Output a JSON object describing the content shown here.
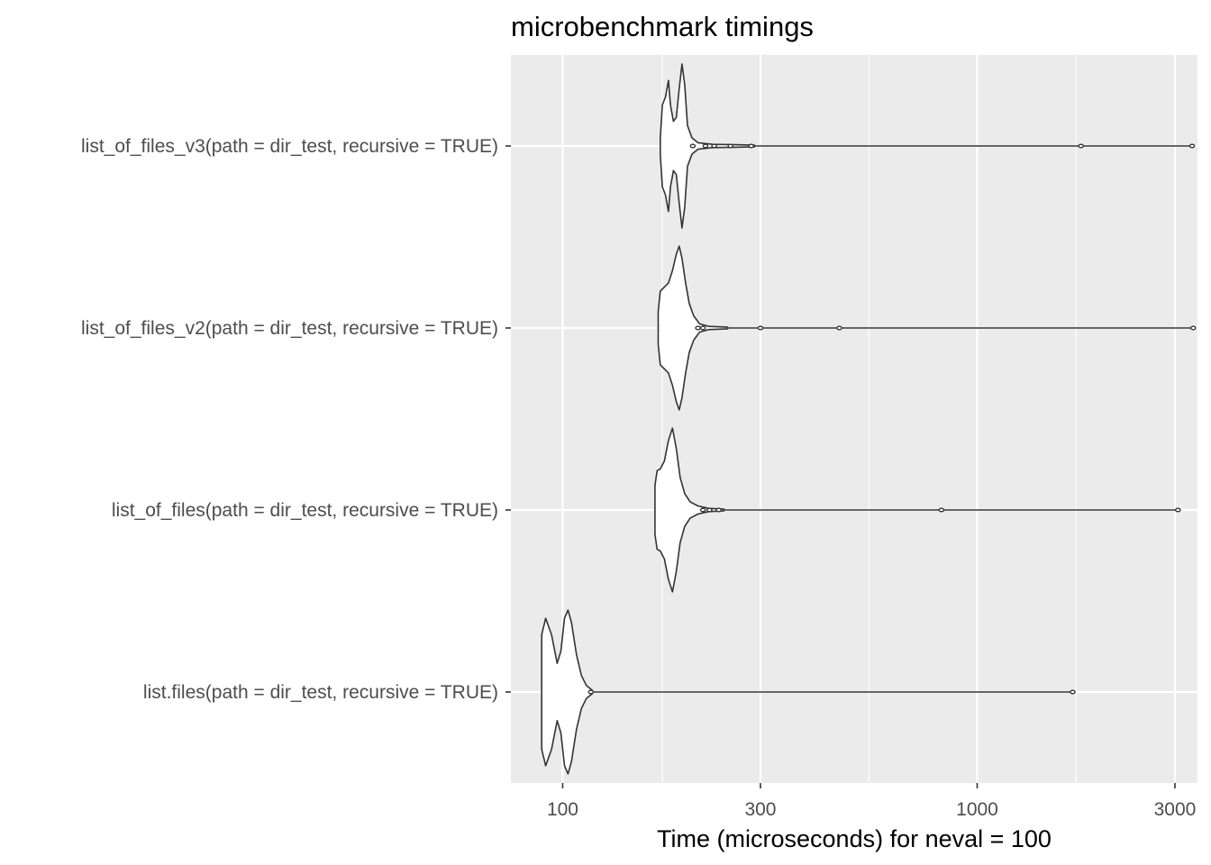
{
  "chart_data": {
    "type": "violin",
    "title": "microbenchmark timings",
    "xlabel": "Time (microseconds) for neval = 100",
    "ylabel": "",
    "x_scale": "log10",
    "xlim": [
      75,
      3400
    ],
    "x_ticks": [
      100,
      300,
      1000,
      3000
    ],
    "x_tick_labels": [
      "100",
      "300",
      "1000",
      "3000"
    ],
    "x_minor_ticks": [
      174,
      548,
      1730
    ],
    "grid": true,
    "legend": "none",
    "colors": {
      "panel": "#ebebeb",
      "grid": "#ffffff",
      "line": "#333333",
      "fill": "#ffffff",
      "axis_text": "#4d4d4d"
    },
    "categories": [
      "list_of_files_v3(path = dir_test, recursive = TRUE)",
      "list_of_files_v2(path = dir_test, recursive = TRUE)",
      "list_of_files(path = dir_test, recursive = TRUE)",
      "list.files(path = dir_test, recursive = TRUE)"
    ],
    "series": [
      {
        "min": 172,
        "max": 3300,
        "outliers": [
          206,
          221,
          232,
          254,
          285,
          1780,
          3300
        ],
        "profile": [
          [
            172,
            0.1
          ],
          [
            174,
            0.5
          ],
          [
            177,
            0.6
          ],
          [
            180,
            0.8
          ],
          [
            182,
            0.5
          ],
          [
            185,
            0.3
          ],
          [
            188,
            0.35
          ],
          [
            191,
            0.7
          ],
          [
            194,
            1.0
          ],
          [
            197,
            0.75
          ],
          [
            200,
            0.25
          ],
          [
            205,
            0.1
          ],
          [
            212,
            0.04
          ],
          [
            230,
            0.02
          ],
          [
            260,
            0.015
          ],
          [
            290,
            0.01
          ]
        ]
      },
      {
        "min": 170,
        "max": 3320,
        "outliers": [
          212,
          218,
          300,
          465,
          3320
        ],
        "profile": [
          [
            170,
            0.2
          ],
          [
            172,
            0.45
          ],
          [
            176,
            0.5
          ],
          [
            180,
            0.55
          ],
          [
            184,
            0.7
          ],
          [
            188,
            0.9
          ],
          [
            191,
            1.0
          ],
          [
            194,
            0.85
          ],
          [
            198,
            0.55
          ],
          [
            202,
            0.3
          ],
          [
            207,
            0.15
          ],
          [
            214,
            0.05
          ],
          [
            225,
            0.02
          ],
          [
            250,
            0.01
          ]
        ]
      },
      {
        "min": 167,
        "max": 3050,
        "outliers": [
          218,
          226,
          238,
          820,
          3050
        ],
        "profile": [
          [
            167,
            0.3
          ],
          [
            169,
            0.48
          ],
          [
            172,
            0.5
          ],
          [
            176,
            0.6
          ],
          [
            180,
            0.85
          ],
          [
            184,
            1.0
          ],
          [
            188,
            0.75
          ],
          [
            192,
            0.4
          ],
          [
            197,
            0.2
          ],
          [
            203,
            0.1
          ],
          [
            212,
            0.05
          ],
          [
            225,
            0.02
          ],
          [
            245,
            0.01
          ]
        ]
      },
      {
        "min": 89,
        "max": 1700,
        "outliers": [
          117,
          1700
        ],
        "profile": [
          [
            89,
            0.7
          ],
          [
            91,
            0.9
          ],
          [
            94,
            0.7
          ],
          [
            97,
            0.35
          ],
          [
            99,
            0.5
          ],
          [
            101,
            0.9
          ],
          [
            103,
            1.0
          ],
          [
            105,
            0.85
          ],
          [
            108,
            0.45
          ],
          [
            111,
            0.2
          ],
          [
            114,
            0.08
          ],
          [
            118,
            0.02
          ]
        ]
      }
    ]
  }
}
